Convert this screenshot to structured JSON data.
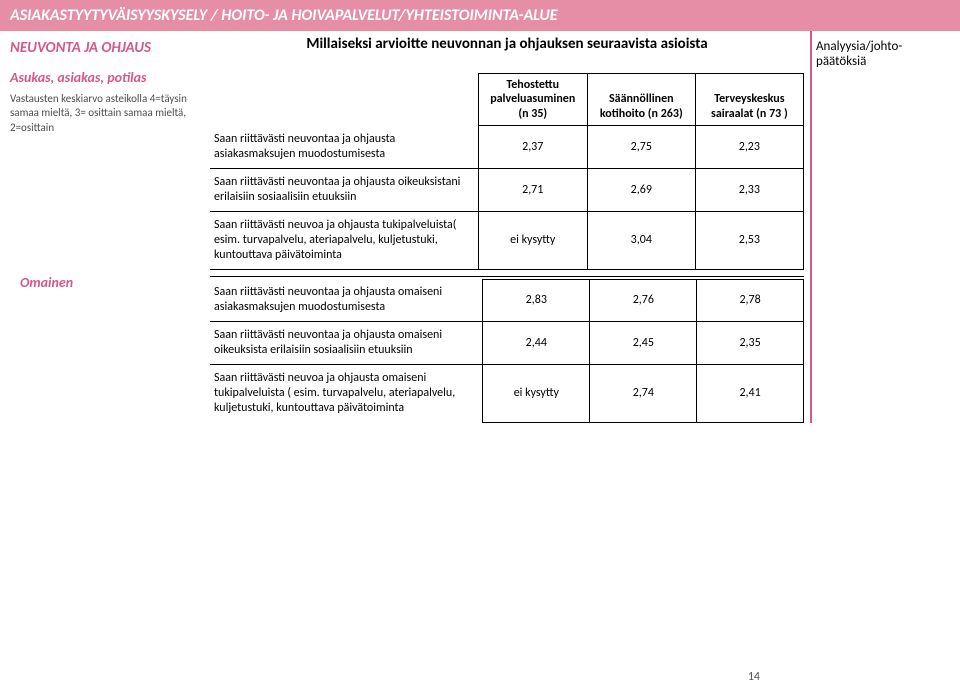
{
  "header": "ASIAKASTYYTYVÄISYYSKYSELY / HOITO- JA HOIVAPALVELUT/YHTEISTOIMINTA-ALUE",
  "left": {
    "section_title": "NEUVONTA JA OHJAUS",
    "respondent": "Asukas, asiakas, potilas",
    "scale_note": "Vastausten keskiarvo asteikolla 4=täysin samaa mieltä, 3= osittain samaa mieltä, 2=osittain",
    "omainen": "Omainen"
  },
  "question": "Millaiseksi arvioitte neuvonnan ja ohjauksen seuraavista asioista",
  "right_title": "Analyysia/johto-päätöksiä",
  "columns": {
    "c1": "Tehostettu palveluasuminen (n 35)",
    "c2": "Säännöllinen kotihoito (n 263)",
    "c3": "Terveyskeskus sairaalat (n 73 )"
  },
  "rows": [
    {
      "label": "Saan riittävästi neuvontaa ja ohjausta asiakasmaksujen muodostumisesta",
      "v1": "2,37",
      "v2": "2,75",
      "v3": "2,23"
    },
    {
      "label": "Saan riittävästi neuvontaa ja ohjausta oikeuksistani erilaisiin sosiaalisiin etuuksiin",
      "v1": "2,71",
      "v2": "2,69",
      "v3": "2,33"
    },
    {
      "label": "Saan riittävästi neuvoa ja ohjausta tukipalveluista( esim. turvapalvelu, ateriapalvelu, kuljetustuki, kuntouttava päivätoiminta",
      "v1": "ei kysytty",
      "v2": "3,04",
      "v3": "2,53"
    },
    {
      "label": "Saan riittävästi neuvontaa ja ohjausta omaiseni asiakasmaksujen muodostumisesta",
      "v1": "2,83",
      "v2": "2,76",
      "v3": "2,78"
    },
    {
      "label": "Saan riittävästi neuvontaa ja ohjausta omaiseni oikeuksista erilaisiin sosiaalisiin etuuksiin",
      "v1": "2,44",
      "v2": "2,45",
      "v3": "2,35"
    },
    {
      "label": "Saan riittävästi neuvoa ja ohjausta omaiseni tukipalveluista ( esim. turvapalvelu, ateriapalvelu, kuljetustuki, kuntouttava päivätoiminta",
      "v1": "ei kysytty",
      "v2": "2,74",
      "v3": "2,41"
    }
  ],
  "page_no": "14"
}
